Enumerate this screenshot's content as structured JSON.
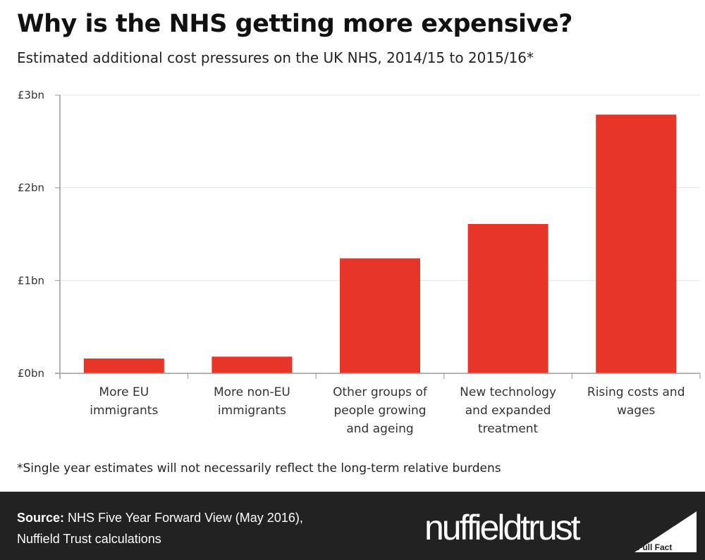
{
  "title": "Why is the NHS getting more expensive?",
  "subtitle": "Estimated additional cost pressures on the UK NHS, 2014/15 to 2015/16*",
  "note": "*Single year estimates will not necessarily reflect the long-term relative burdens",
  "footer": {
    "source_label": "Source:",
    "source_text": "NHS Five Year Forward View (May 2016),",
    "source_line2": "Nuffield Trust calculations",
    "logo": "nuffieldtrust",
    "badge": "Full Fact"
  },
  "chart_data": {
    "type": "bar",
    "title": "Why is the NHS getting more expensive?",
    "categories": [
      [
        "More EU",
        "immigrants"
      ],
      [
        "More non-EU",
        "immigrants"
      ],
      [
        "Other groups of",
        "people growing",
        "and ageing"
      ],
      [
        "New technology",
        "and expanded",
        "treatment"
      ],
      [
        "Rising costs and",
        "wages"
      ]
    ],
    "values": [
      0.16,
      0.18,
      1.24,
      1.61,
      2.79
    ],
    "yticks": [
      "£0bn",
      "£1bn",
      "£2bn",
      "£3bn"
    ],
    "ylim": [
      0,
      3
    ],
    "unit": "£bn",
    "grid": true,
    "bar_color": "#e8352a"
  }
}
